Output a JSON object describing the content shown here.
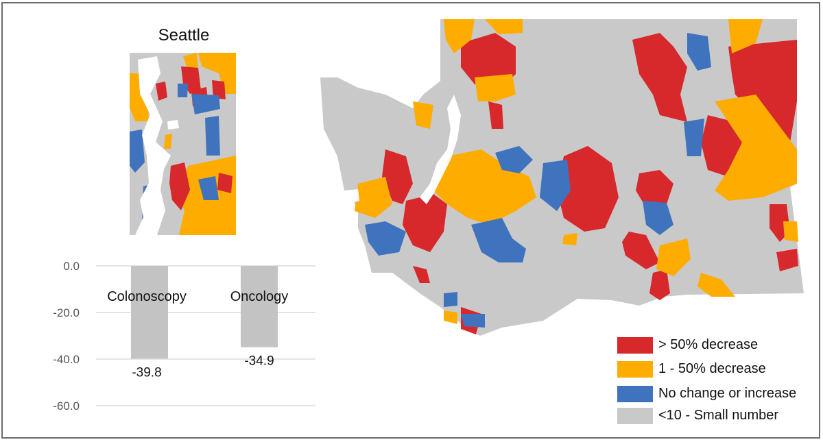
{
  "colors": {
    "decrease_gt_50": "#d7282b",
    "decrease_1_50": "#ffac00",
    "no_change_or_increase": "#3f73bd",
    "small_number": "#c9c9c9",
    "bar": "#c3c3c3",
    "gridline": "#dcdcdc",
    "water": "#ffffff"
  },
  "inset": {
    "title": "Seattle"
  },
  "legend": [
    {
      "label": "> 50% decrease",
      "color": "#d7282b"
    },
    {
      "label": "1 - 50% decrease",
      "color": "#ffac00"
    },
    {
      "label": "No change or increase",
      "color": "#3f73bd"
    },
    {
      "label": "<10 - Small number",
      "color": "#c9c9c9"
    }
  ],
  "chart_data": {
    "type": "bar",
    "categories": [
      "Colonoscopy",
      "Oncology"
    ],
    "values": [
      -39.8,
      -34.9
    ],
    "value_labels": [
      "-39.8",
      "-34.9"
    ],
    "ylim": [
      -60,
      0
    ],
    "yticks": [
      0,
      -20,
      -40,
      -60
    ],
    "ytick_labels": [
      "0.0",
      "-20.0",
      "-40.0",
      "-60.0"
    ],
    "grid": true,
    "title": "",
    "xlabel": "",
    "ylabel": ""
  }
}
